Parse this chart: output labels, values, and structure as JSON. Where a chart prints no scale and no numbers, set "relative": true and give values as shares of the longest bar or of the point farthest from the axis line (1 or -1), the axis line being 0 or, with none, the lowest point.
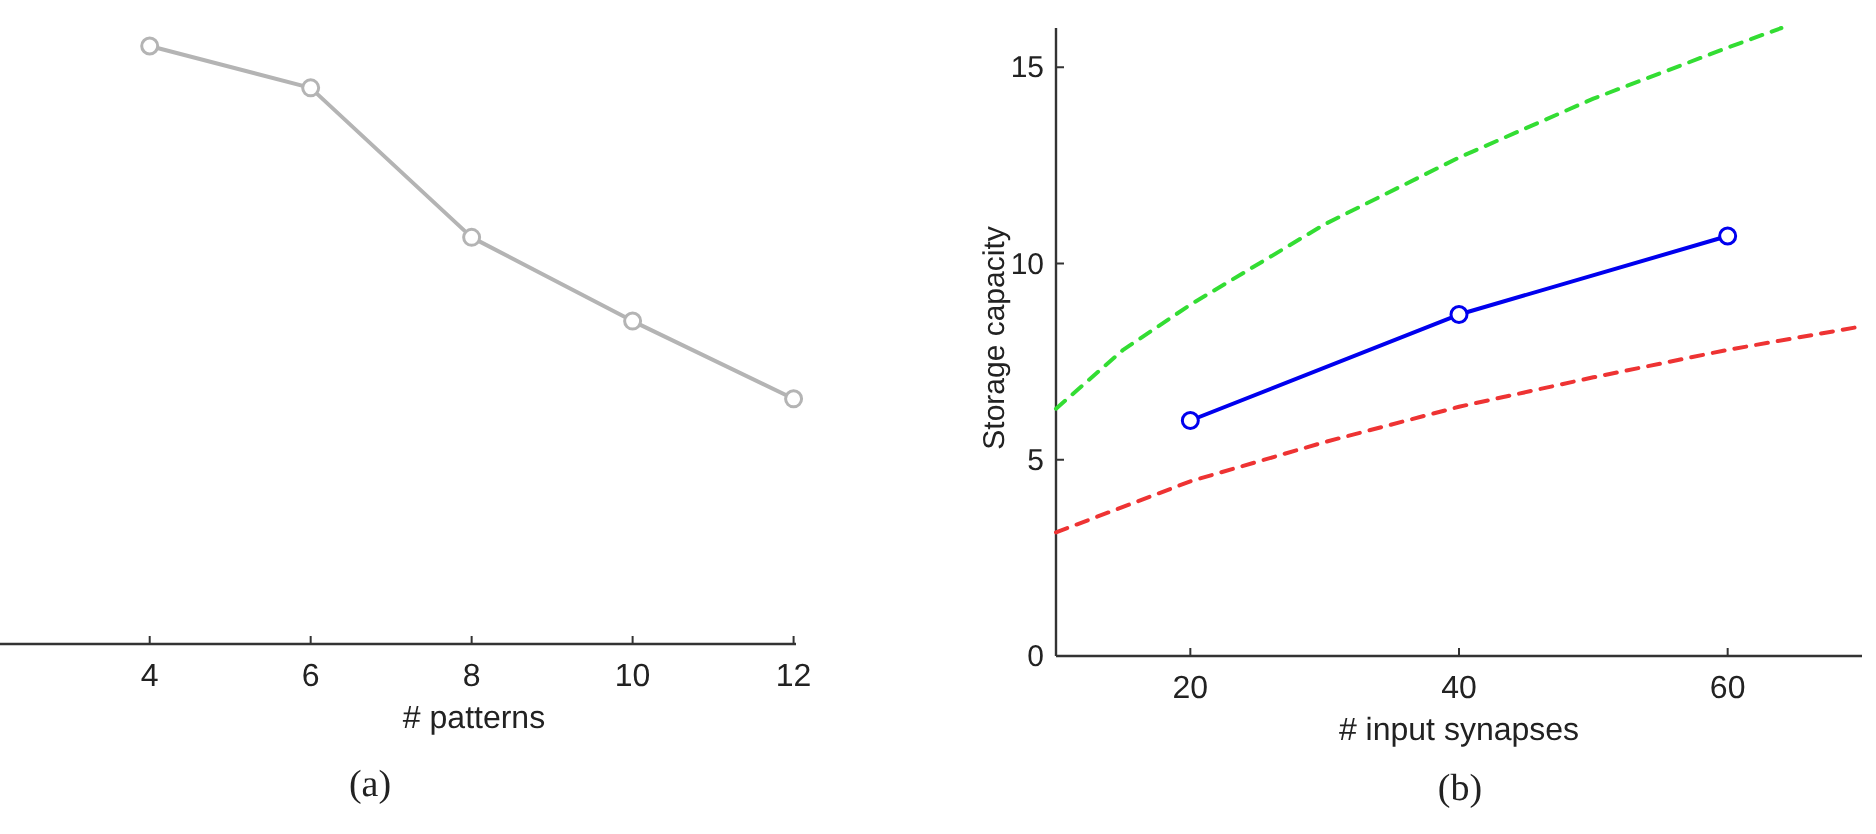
{
  "chart_data": [
    {
      "type": "line",
      "relative": true,
      "xlabel": "# patterns",
      "x": [
        4,
        6,
        8,
        10,
        12
      ],
      "xlim": [
        2.14,
        12.03
      ],
      "xticks": [
        4,
        6,
        8,
        10,
        12
      ],
      "marker": "circle",
      "grid": false,
      "annotations": [
        "(a)"
      ],
      "series": [
        {
          "color": "#b4b4b4",
          "values": [
            1.0,
            0.93,
            0.68,
            0.54,
            0.41
          ]
        }
      ]
    },
    {
      "type": "line",
      "xlabel": "# input synapses",
      "ylabel": "Storage capacity",
      "xlim": [
        10,
        70
      ],
      "ylim": [
        0,
        16
      ],
      "xticks": [
        20,
        40,
        60
      ],
      "yticks": [
        0,
        5,
        10,
        15
      ],
      "grid": false,
      "annotations": [
        "(b)"
      ],
      "series": [
        {
          "color": "#33dd33",
          "line_style": "dashed",
          "marker": "none",
          "x": [
            10,
            15,
            20,
            30,
            40,
            50,
            60,
            64
          ],
          "values": [
            6.3,
            7.8,
            8.95,
            11.0,
            12.7,
            14.2,
            15.5,
            16.0
          ]
        },
        {
          "color": "#ee3333",
          "line_style": "dashed",
          "marker": "none",
          "x": [
            10,
            20,
            30,
            40,
            50,
            60,
            70
          ],
          "values": [
            3.15,
            4.45,
            5.45,
            6.35,
            7.1,
            7.8,
            8.4
          ]
        },
        {
          "color": "#0000ee",
          "line_style": "solid",
          "marker": "circle",
          "x": [
            20,
            40,
            60
          ],
          "values": [
            6.0,
            8.7,
            10.7
          ]
        }
      ]
    }
  ]
}
